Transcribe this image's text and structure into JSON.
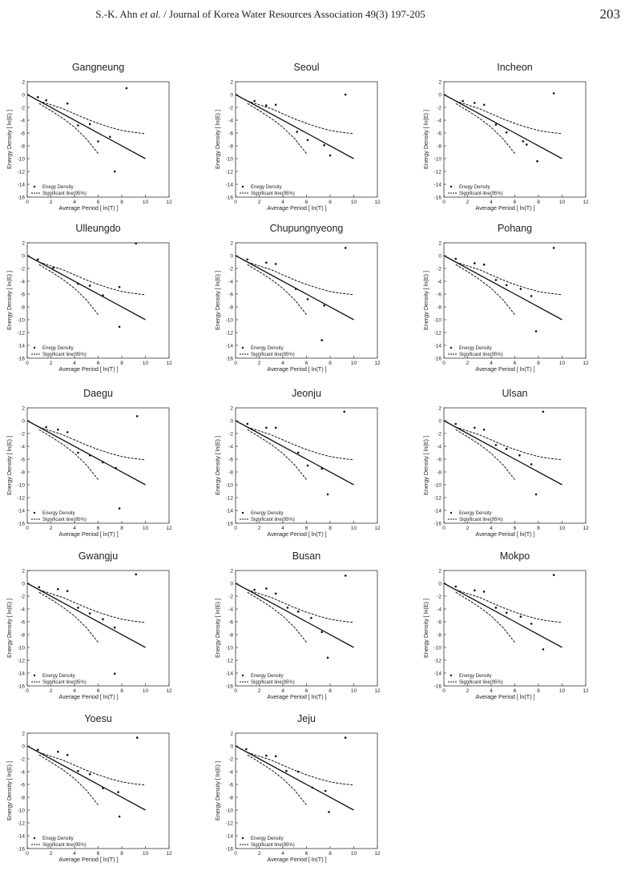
{
  "page_header": {
    "authors": "S.-K. Ahn",
    "et_al": "et al.",
    "journal": "/ Journal of Korea Water Resources Association 49(3) 197-205",
    "page_number": "203"
  },
  "shared_axes": {
    "xlabel": "Average Period [ ln(T) ]",
    "ylabel": "Energy Density [ ln(E) ]",
    "xlim": [
      0,
      12
    ],
    "ylim": [
      -16,
      2
    ],
    "xticks": [
      "0",
      "2",
      "4",
      "6",
      "8",
      "10",
      "12"
    ],
    "yticks": [
      "2",
      "0",
      "-2",
      "-4",
      "-6",
      "-8",
      "-10",
      "-12",
      "-14",
      "-16"
    ]
  },
  "lines": {
    "expected_line": [
      [
        0,
        0
      ],
      [
        10,
        -10
      ]
    ],
    "significant_upper": [
      [
        1,
        -1.0
      ],
      [
        2,
        -1.6
      ],
      [
        3,
        -2.2
      ],
      [
        4,
        -3.0
      ],
      [
        5,
        -3.8
      ],
      [
        6,
        -4.5
      ],
      [
        7,
        -5.1
      ],
      [
        8,
        -5.6
      ],
      [
        9,
        -5.9
      ],
      [
        10,
        -6.1
      ]
    ],
    "significant_lower": [
      [
        1,
        -1.4
      ],
      [
        2,
        -2.5
      ],
      [
        3,
        -3.7
      ],
      [
        4,
        -5.1
      ],
      [
        5,
        -6.9
      ],
      [
        6,
        -9.2
      ]
    ]
  },
  "chart_data": [
    {
      "type": "scatter",
      "title": "Gangneung",
      "legend": [
        "Enegy Density",
        "Significant line(95%)"
      ],
      "points": [
        [
          0.9,
          -0.4
        ],
        [
          1.6,
          -0.9
        ],
        [
          3.4,
          -1.4
        ],
        [
          4.3,
          -4.8
        ],
        [
          5.3,
          -4.6
        ],
        [
          6.0,
          -7.3
        ],
        [
          7.0,
          -6.6
        ],
        [
          7.4,
          -12.0
        ],
        [
          8.4,
          1.0
        ]
      ]
    },
    {
      "type": "scatter",
      "title": "Seoul",
      "legend": [
        "Enegy Density",
        "Significant line(95%)"
      ],
      "points": [
        [
          1.6,
          -1.0
        ],
        [
          2.6,
          -1.7
        ],
        [
          3.4,
          -1.6
        ],
        [
          5.2,
          -5.8
        ],
        [
          6.1,
          -7.1
        ],
        [
          7.5,
          -7.9
        ],
        [
          8.0,
          -9.5
        ],
        [
          9.3,
          0.0
        ]
      ]
    },
    {
      "type": "scatter",
      "title": "Incheon",
      "legend": [
        "Enegy Density",
        "Significant line(95%)"
      ],
      "points": [
        [
          1.6,
          -1.0
        ],
        [
          2.6,
          -1.3
        ],
        [
          3.4,
          -1.6
        ],
        [
          4.4,
          -4.7
        ],
        [
          5.3,
          -5.9
        ],
        [
          6.7,
          -7.3
        ],
        [
          7.0,
          -7.8
        ],
        [
          7.9,
          -10.4
        ],
        [
          9.3,
          0.2
        ]
      ]
    },
    {
      "type": "scatter",
      "title": "Ulleungdo",
      "legend": [
        "Enegy Density",
        "Significant line(95%)"
      ],
      "points": [
        [
          0.9,
          -0.6
        ],
        [
          2.2,
          -1.9
        ],
        [
          4.3,
          -4.4
        ],
        [
          5.3,
          -4.7
        ],
        [
          6.4,
          -6.2
        ],
        [
          7.8,
          -4.9
        ],
        [
          7.8,
          -11.1
        ],
        [
          9.2,
          1.9
        ]
      ]
    },
    {
      "type": "scatter",
      "title": "Chupungnyeong",
      "legend": [
        "Energy Density",
        "Significant line(95%)"
      ],
      "points": [
        [
          1.0,
          -0.6
        ],
        [
          2.6,
          -1.1
        ],
        [
          3.4,
          -1.3
        ],
        [
          5.1,
          -5.2
        ],
        [
          6.1,
          -6.8
        ],
        [
          7.3,
          -13.2
        ],
        [
          7.5,
          -7.8
        ],
        [
          9.3,
          1.2
        ]
      ]
    },
    {
      "type": "scatter",
      "title": "Pohang",
      "legend": [
        "Energy Density",
        "Significant line(95%)"
      ],
      "points": [
        [
          1.0,
          -0.5
        ],
        [
          2.6,
          -1.2
        ],
        [
          3.4,
          -1.4
        ],
        [
          4.4,
          -3.8
        ],
        [
          5.3,
          -4.6
        ],
        [
          6.5,
          -5.2
        ],
        [
          7.4,
          -6.3
        ],
        [
          7.8,
          -11.8
        ],
        [
          9.3,
          1.2
        ]
      ]
    },
    {
      "type": "scatter",
      "title": "Daegu",
      "legend": [
        "Energy Density",
        "Significant line(95%)"
      ],
      "points": [
        [
          1.6,
          -1.0
        ],
        [
          2.6,
          -1.4
        ],
        [
          3.4,
          -1.8
        ],
        [
          4.3,
          -5.0
        ],
        [
          5.3,
          -5.4
        ],
        [
          6.4,
          -6.5
        ],
        [
          7.5,
          -7.4
        ],
        [
          7.8,
          -13.7
        ],
        [
          9.3,
          0.7
        ]
      ]
    },
    {
      "type": "scatter",
      "title": "Jeonju",
      "legend": [
        "Energy Density",
        "Significant line(95%)"
      ],
      "points": [
        [
          1.0,
          -0.5
        ],
        [
          2.6,
          -1.1
        ],
        [
          3.4,
          -1.1
        ],
        [
          5.3,
          -5.0
        ],
        [
          6.1,
          -7.0
        ],
        [
          7.3,
          -7.5
        ],
        [
          7.8,
          -11.5
        ],
        [
          9.2,
          1.4
        ]
      ]
    },
    {
      "type": "scatter",
      "title": "Ulsan",
      "legend": [
        "Energy Density",
        "Significant line(95%)"
      ],
      "points": [
        [
          1.0,
          -0.5
        ],
        [
          2.6,
          -1.1
        ],
        [
          3.4,
          -1.4
        ],
        [
          4.4,
          -3.8
        ],
        [
          5.3,
          -4.4
        ],
        [
          6.4,
          -5.4
        ],
        [
          7.4,
          -6.8
        ],
        [
          7.8,
          -11.5
        ],
        [
          8.4,
          1.4
        ]
      ]
    },
    {
      "type": "scatter",
      "title": "Gwangju",
      "legend": [
        "Energy Density",
        "Significant line(95%)"
      ],
      "points": [
        [
          1.0,
          -0.6
        ],
        [
          2.6,
          -0.9
        ],
        [
          3.4,
          -1.2
        ],
        [
          4.3,
          -3.8
        ],
        [
          5.3,
          -4.7
        ],
        [
          6.4,
          -5.6
        ],
        [
          7.4,
          -6.9
        ],
        [
          7.4,
          -14.1
        ],
        [
          9.2,
          1.4
        ]
      ]
    },
    {
      "type": "scatter",
      "title": "Busan",
      "legend": [
        "Energy Density",
        "Significant line(95%)"
      ],
      "points": [
        [
          1.6,
          -1.0
        ],
        [
          2.6,
          -0.8
        ],
        [
          3.4,
          -1.6
        ],
        [
          4.4,
          -3.8
        ],
        [
          5.3,
          -4.4
        ],
        [
          6.4,
          -5.4
        ],
        [
          7.3,
          -7.6
        ],
        [
          7.8,
          -11.6
        ],
        [
          9.3,
          1.2
        ]
      ]
    },
    {
      "type": "scatter",
      "title": "Mokpo",
      "legend": [
        "Energy Density",
        "Significant line(95%)"
      ],
      "points": [
        [
          1.0,
          -0.5
        ],
        [
          2.6,
          -1.1
        ],
        [
          3.4,
          -1.3
        ],
        [
          4.4,
          -3.8
        ],
        [
          5.3,
          -4.6
        ],
        [
          6.5,
          -5.2
        ],
        [
          7.4,
          -6.3
        ],
        [
          8.4,
          -10.3
        ],
        [
          9.3,
          1.3
        ]
      ]
    },
    {
      "type": "scatter",
      "title": "Yoesu",
      "legend": [
        "Enegy Density",
        "Significant line(95%)"
      ],
      "points": [
        [
          0.9,
          -0.6
        ],
        [
          2.6,
          -0.9
        ],
        [
          3.4,
          -1.4
        ],
        [
          4.3,
          -3.9
        ],
        [
          5.3,
          -4.4
        ],
        [
          6.4,
          -6.6
        ],
        [
          7.7,
          -7.2
        ],
        [
          7.8,
          -11.0
        ],
        [
          9.3,
          1.3
        ]
      ]
    },
    {
      "type": "scatter",
      "title": "Jeju",
      "legend": [
        "Energy Density",
        "Significant line(95%)"
      ],
      "points": [
        [
          0.9,
          -0.5
        ],
        [
          2.6,
          -1.5
        ],
        [
          3.4,
          -1.6
        ],
        [
          4.3,
          -3.9
        ],
        [
          5.3,
          -4.0
        ],
        [
          6.5,
          -6.5
        ],
        [
          7.6,
          -7.0
        ],
        [
          7.9,
          -10.3
        ],
        [
          9.3,
          1.3
        ]
      ]
    }
  ]
}
